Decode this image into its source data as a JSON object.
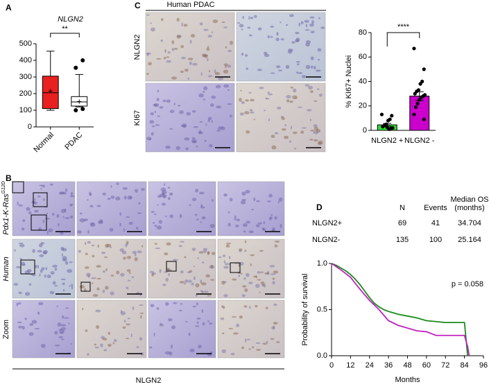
{
  "figure": {
    "panel_labels": [
      "A",
      "B",
      "C",
      "D"
    ],
    "c_title": "Human PDAC",
    "c_rows": [
      "NLGN2",
      "KI67"
    ],
    "b_rows": [
      "Pdx1-K-Ras",
      "Human",
      "Zoom"
    ],
    "b_superscript": "G12D",
    "b_footer": "NLGN2"
  },
  "chart_data": [
    {
      "type": "box",
      "title": "NLGN2",
      "annotation": "**",
      "categories": [
        "Normal",
        "PDAC"
      ],
      "colors": [
        "#e8201f",
        "#ffffff"
      ],
      "boxes": [
        {
          "min": 100,
          "q1": 110,
          "median": 205,
          "mean": 215,
          "q3": 305,
          "max": 455,
          "outliers": []
        },
        {
          "min": 120,
          "q1": 125,
          "median": 150,
          "mean": 152,
          "q3": 182,
          "max": 315,
          "outliers": [
            400,
            355,
            108,
            100
          ]
        }
      ],
      "ylim": [
        0,
        500
      ],
      "yticks": [
        0,
        100,
        200,
        300,
        400,
        500
      ]
    },
    {
      "type": "bar",
      "ylabel": "% KI67+ Nuclei",
      "annotation": "****",
      "categories": [
        "NLGN2 +",
        "NLGN2 -"
      ],
      "values": [
        4.5,
        28
      ],
      "errors": [
        1.2,
        3.6
      ],
      "colors": [
        "#33dd33",
        "#cc00cc"
      ],
      "points": [
        [
          13,
          12,
          9,
          8,
          5,
          4,
          3,
          2,
          1.5,
          1,
          2.5
        ],
        [
          67,
          50,
          40,
          38,
          33,
          32,
          30,
          29,
          28,
          27,
          25,
          22,
          19,
          13,
          9
        ]
      ],
      "ylim": [
        0,
        80
      ],
      "yticks": [
        0,
        20,
        40,
        60,
        80
      ]
    },
    {
      "type": "line",
      "xlabel": "Months",
      "ylabel": "Probability of survival",
      "annotation": "p = 0.058",
      "table_headers": [
        "N",
        "Events"
      ],
      "median_header": [
        "Median OS",
        "(months)"
      ],
      "series": [
        {
          "name": "NLGN2+",
          "color": "#1a8a1a",
          "n": 69,
          "events": 41,
          "median_os": 34.704,
          "x": [
            0,
            3,
            6,
            9,
            12,
            15,
            18,
            21,
            24,
            27,
            30,
            33,
            36,
            42,
            48,
            54,
            60,
            66,
            72,
            84,
            85,
            86
          ],
          "values": [
            1.0,
            0.98,
            0.95,
            0.92,
            0.88,
            0.83,
            0.77,
            0.7,
            0.63,
            0.57,
            0.53,
            0.5,
            0.48,
            0.45,
            0.43,
            0.41,
            0.38,
            0.37,
            0.36,
            0.36,
            0.18,
            0.0
          ]
        },
        {
          "name": "NLGN2-",
          "color": "#c020c0",
          "n": 135,
          "events": 100,
          "median_os": 25.164,
          "x": [
            0,
            6,
            12,
            18,
            24,
            30,
            36,
            42,
            48,
            54,
            60,
            66,
            84,
            86,
            87
          ],
          "values": [
            1.0,
            0.93,
            0.85,
            0.72,
            0.6,
            0.5,
            0.38,
            0.33,
            0.3,
            0.27,
            0.26,
            0.22,
            0.22,
            0.1,
            0.0
          ]
        }
      ],
      "xlim": [
        0,
        96
      ],
      "xticks": [
        0,
        12,
        24,
        36,
        48,
        60,
        72,
        84,
        96
      ],
      "ylim": [
        0,
        1
      ],
      "yticks": [
        {
          "value": 0,
          "label": "0.0"
        },
        {
          "value": 0.5,
          "label": "0.5"
        },
        {
          "value": 1,
          "label": "1.0"
        }
      ]
    }
  ]
}
